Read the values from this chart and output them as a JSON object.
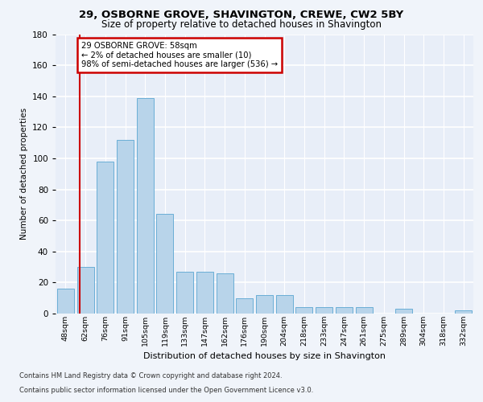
{
  "title1": "29, OSBORNE GROVE, SHAVINGTON, CREWE, CW2 5BY",
  "title2": "Size of property relative to detached houses in Shavington",
  "xlabel": "Distribution of detached houses by size in Shavington",
  "ylabel": "Number of detached properties",
  "bar_values": [
    16,
    30,
    98,
    112,
    139,
    64,
    27,
    27,
    26,
    10,
    12,
    12,
    4,
    4,
    4,
    4,
    0,
    3,
    0,
    0,
    2
  ],
  "bar_labels": [
    "48sqm",
    "62sqm",
    "76sqm",
    "91sqm",
    "105sqm",
    "119sqm",
    "133sqm",
    "147sqm",
    "162sqm",
    "176sqm",
    "190sqm",
    "204sqm",
    "218sqm",
    "233sqm",
    "247sqm",
    "261sqm",
    "275sqm",
    "289sqm",
    "304sqm",
    "318sqm",
    "332sqm"
  ],
  "bar_color": "#b8d4ea",
  "bar_edge_color": "#6aaed6",
  "annotation_title": "29 OSBORNE GROVE: 58sqm",
  "annotation_line1": "← 2% of detached houses are smaller (10)",
  "annotation_line2": "98% of semi-detached houses are larger (536) →",
  "vline_color": "#cc0000",
  "annotation_box_color": "#cc0000",
  "footer1": "Contains HM Land Registry data © Crown copyright and database right 2024.",
  "footer2": "Contains public sector information licensed under the Open Government Licence v3.0.",
  "ylim": [
    0,
    180
  ],
  "yticks": [
    0,
    20,
    40,
    60,
    80,
    100,
    120,
    140,
    160,
    180
  ],
  "bg_color": "#f0f4fa",
  "plot_bg_color": "#e8eef8"
}
